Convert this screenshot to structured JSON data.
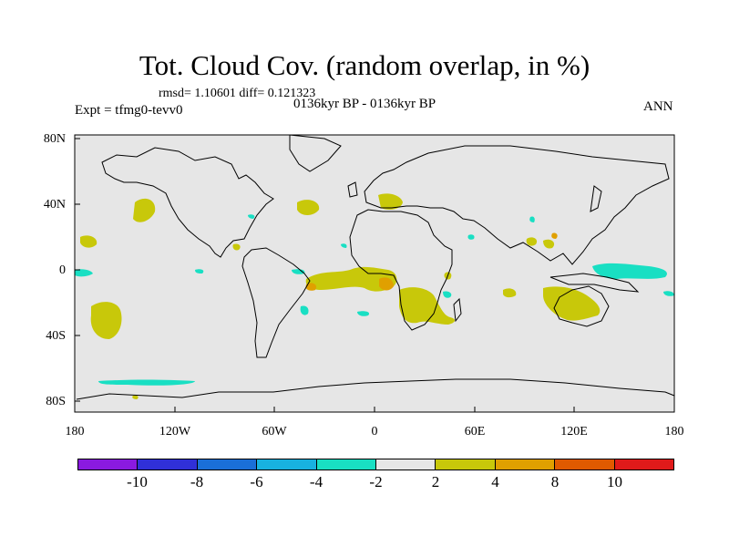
{
  "title": "Tot. Cloud Cov. (random overlap, in %)",
  "stats": "rmsd= 1.10601 diff= 0.121323",
  "expt": "Expt = tfmg0-tevv0",
  "period": "0136kyr BP - 0136kyr BP",
  "season": "ANN",
  "lat_labels": [
    "80N",
    "40N",
    "0",
    "40S",
    "80S"
  ],
  "lon_labels": [
    "180",
    "120W",
    "60W",
    "0",
    "60E",
    "120E",
    "180"
  ],
  "colorbar": {
    "colors": [
      "#8a1ae0",
      "#3030d8",
      "#1a6fd8",
      "#18b2e0",
      "#19dfc3",
      "#e6e6e6",
      "#c8c80a",
      "#e0a000",
      "#e05a00",
      "#e01a1a"
    ],
    "labels": [
      "-10",
      "-8",
      "-6",
      "-4",
      "-2",
      "2",
      "4",
      "8",
      "10"
    ]
  },
  "colors": {
    "background": "#e6e6e6",
    "positive": "#c8c80a",
    "positive_strong": "#e0a000",
    "negative": "#19dfc3",
    "coast": "#000000"
  }
}
